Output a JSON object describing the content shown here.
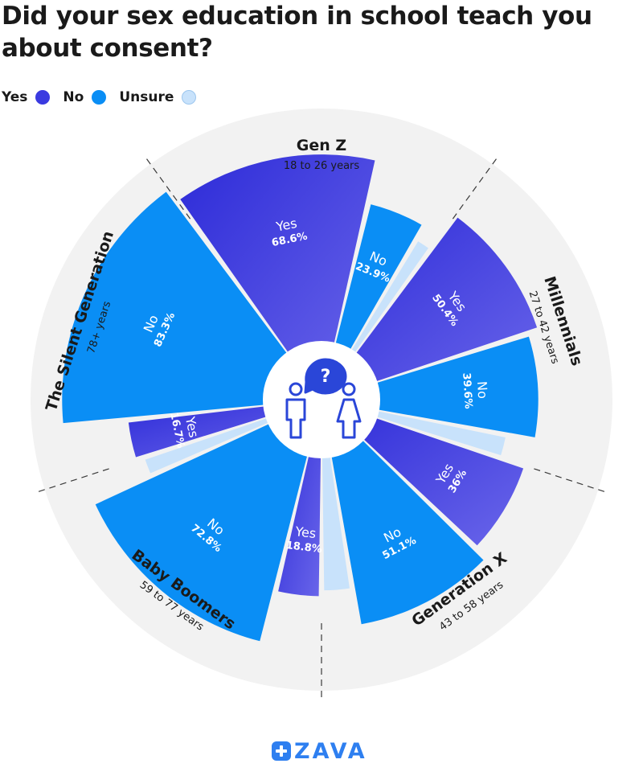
{
  "header": {
    "title": "Did your sex education in school teach you about consent?"
  },
  "legend": {
    "items": [
      {
        "label": "Yes",
        "color": "#3a3ae0"
      },
      {
        "label": "No",
        "color": "#0a8ef5"
      },
      {
        "label": "Unsure",
        "color": "#c8e2fb"
      }
    ]
  },
  "chart_data": {
    "type": "pie",
    "title": "Did your sex education in school teach you about consent?",
    "legend_position": "top-left",
    "categories": [
      "Yes",
      "No",
      "Unsure"
    ],
    "groups": [
      {
        "name": "Gen Z",
        "age_range": "18 to 26 years",
        "values": {
          "Yes": 68.6,
          "No": 23.9
        }
      },
      {
        "name": "Millennials",
        "age_range": "27 to 42 years",
        "values": {
          "Yes": 50.4,
          "No": 39.6
        }
      },
      {
        "name": "Generation X",
        "age_range": "43 to 58 years",
        "values": {
          "Yes": 36,
          "No": 51.1
        }
      },
      {
        "name": "Baby Boomers",
        "age_range": "59 to 77 years",
        "values": {
          "Yes": 18.8,
          "No": 72.8
        }
      },
      {
        "name": "The Silent Generation",
        "age_range": "78+ years",
        "values": {
          "Yes": 16.7,
          "No": 83.3
        }
      }
    ]
  },
  "center_icon": "consent-question-people-icon",
  "brand": {
    "name": "ZAVA",
    "logo_icon": "plus-cross-icon",
    "color": "#2e7ff0"
  }
}
